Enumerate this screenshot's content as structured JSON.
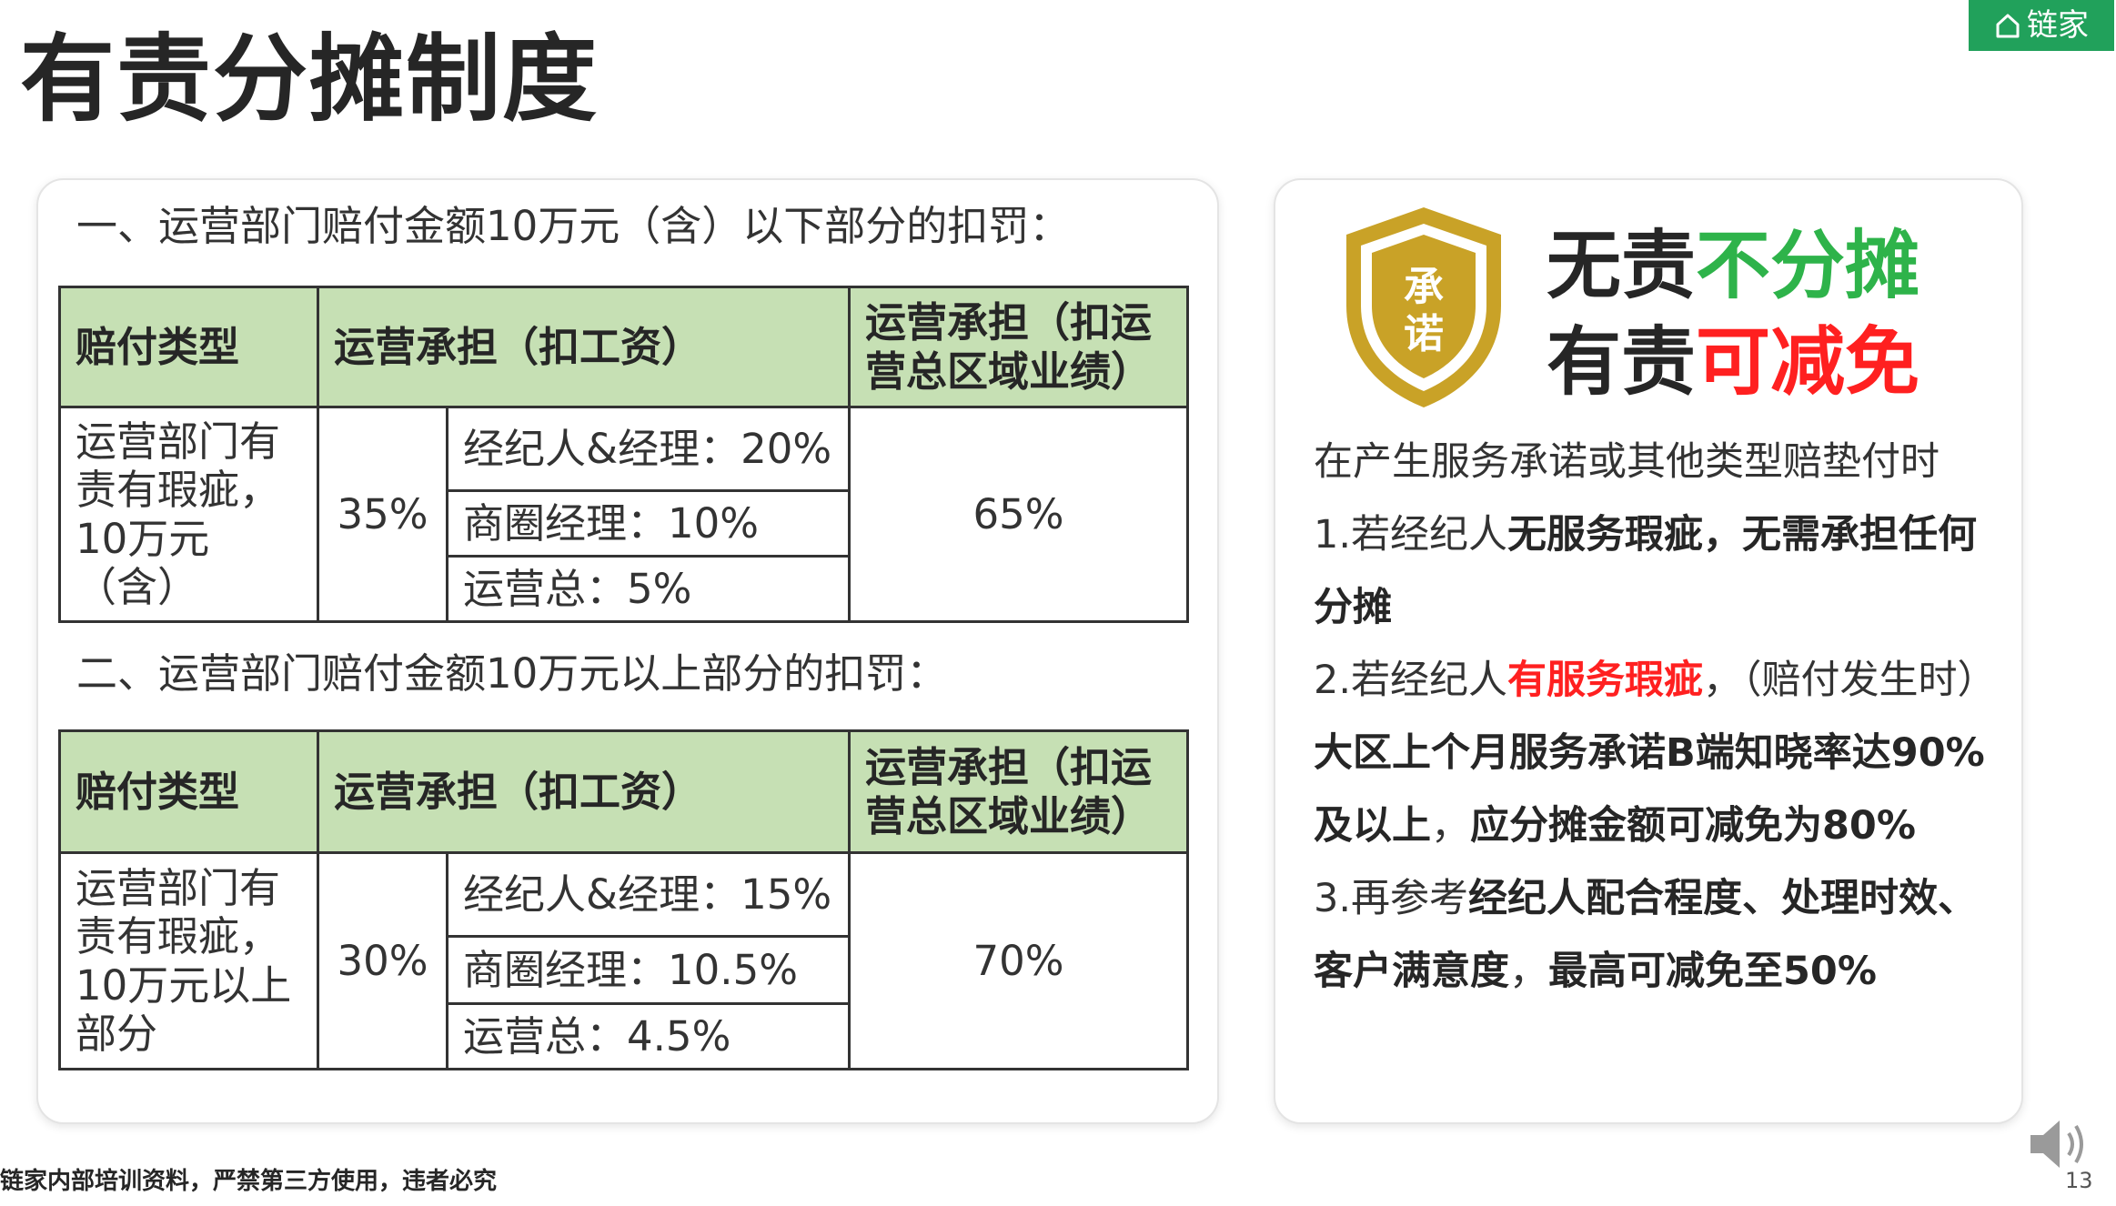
{
  "title": "有责分摊制度",
  "brand": {
    "logo_text": "链家",
    "color": "#21a15b"
  },
  "section1": {
    "heading": "一、运营部门赔付金额10万元（含）以下部分的扣罚：",
    "headers": [
      "赔付类型",
      "运营承担（扣工资）",
      "运营承担（扣运营总区域业绩）"
    ],
    "type": "运营部门有责有瑕疵，10万元（含）",
    "ops_share": "35%",
    "rows": [
      "经纪人&经理：20%",
      "商圈经理：10%",
      "运营总：5%"
    ],
    "regional_share": "65%"
  },
  "section2": {
    "heading": "二、运营部门赔付金额10万元以上部分的扣罚：",
    "headers": [
      "赔付类型",
      "运营承担（扣工资）",
      "运营承担（扣运营总区域业绩）"
    ],
    "type": "运营部门有责有瑕疵，10万元以上部分",
    "ops_share": "30%",
    "rows": [
      "经纪人&经理：15%",
      "商圈经理：10.5%",
      "运营总：4.5%"
    ],
    "regional_share": "70%"
  },
  "badge": {
    "text": "承诺",
    "icon": "shield-icon"
  },
  "slogan": {
    "line1_a": "无责",
    "line1_b": "不分摊",
    "line2_a": "有责",
    "line2_b": "可减免"
  },
  "description": {
    "intro": "在产生服务承诺或其他类型赔垫付时",
    "p1_a": "1.若经纪人",
    "p1_b": "无服务瑕疵，无需承担任何分摊",
    "p2_a": "2.若经纪人",
    "p2_b": "有服务瑕疵",
    "p2_c": "，（赔付发生时）",
    "p2_d": "大区上个月服务承诺B端知晓率达90%及以上",
    "p2_e": "，",
    "p2_f": "应分摊金额可减免为80%",
    "p3_a": "3.再参考",
    "p3_b": "经纪人配合程度、处理时效、客户满意度",
    "p3_c": "，",
    "p3_d": "最高可减免至50%"
  },
  "footer": {
    "notice": "链家内部培训资料，严禁第三方使用，违者必究",
    "page_number": "13"
  },
  "colors": {
    "table_header_bg": "#c6e0b4",
    "accent_green": "#2eb34a",
    "accent_red": "#ff2020",
    "shield_gold": "#c9a227"
  }
}
